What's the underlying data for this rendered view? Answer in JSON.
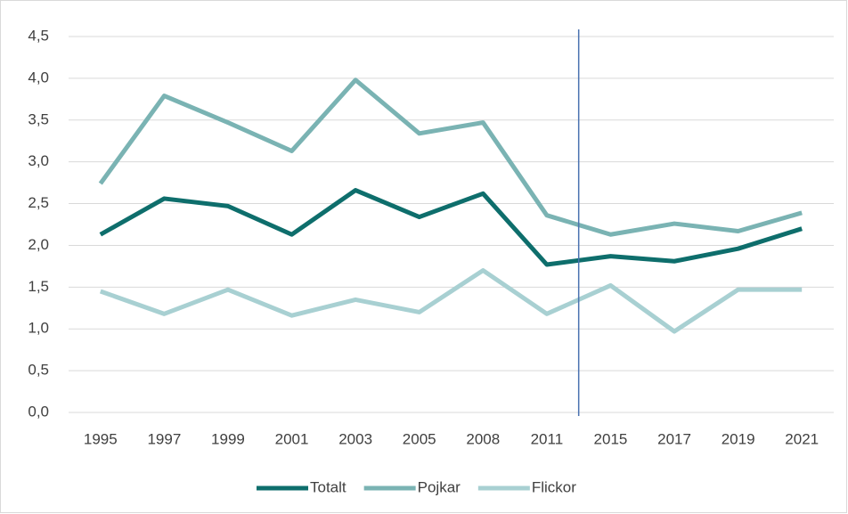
{
  "chart_data": {
    "type": "line",
    "categories": [
      "1995",
      "1997",
      "1999",
      "2001",
      "2003",
      "2005",
      "2008",
      "2011",
      "2015",
      "2017",
      "2019",
      "2021"
    ],
    "series": [
      {
        "name": "Totalt",
        "color": "#0e6e6c",
        "values": [
          2.13,
          2.56,
          2.47,
          2.13,
          2.66,
          2.34,
          2.62,
          1.77,
          1.87,
          1.81,
          1.96,
          2.2
        ]
      },
      {
        "name": "Pojkar",
        "color": "#7ab3b3",
        "values": [
          2.74,
          3.79,
          3.47,
          3.13,
          3.98,
          3.34,
          3.47,
          2.36,
          2.13,
          2.26,
          2.17,
          2.39
        ]
      },
      {
        "name": "Flickor",
        "color": "#a8d0d2",
        "values": [
          1.45,
          1.18,
          1.47,
          1.16,
          1.35,
          1.2,
          1.7,
          1.18,
          1.52,
          0.97,
          1.47,
          1.47
        ]
      }
    ],
    "ylim": [
      0,
      4.5
    ],
    "yticks": [
      {
        "value": 0,
        "label": "0,0"
      },
      {
        "value": 0.5,
        "label": "0,5"
      },
      {
        "value": 1,
        "label": "1,0"
      },
      {
        "value": 1.5,
        "label": "1,5"
      },
      {
        "value": 2,
        "label": "2,0"
      },
      {
        "value": 2.5,
        "label": "2,5"
      },
      {
        "value": 3,
        "label": "3,0"
      },
      {
        "value": 3.5,
        "label": "3,5"
      },
      {
        "value": 4,
        "label": "4,0"
      },
      {
        "value": 4.5,
        "label": "4,5"
      }
    ],
    "grid": true,
    "legend": "bottom"
  }
}
